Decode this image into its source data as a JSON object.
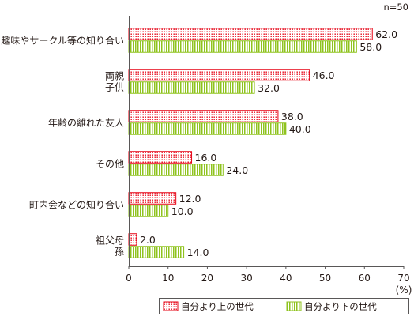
{
  "chart_data": {
    "type": "bar",
    "orientation": "horizontal",
    "note": "n=50",
    "categories": [
      [
        "趣味やサークル等の知り合い"
      ],
      [
        "両親",
        "子供"
      ],
      [
        "年齢の離れた友人"
      ],
      [
        "その他"
      ],
      [
        "町内会などの知り合い"
      ],
      [
        "祖父母",
        "孫"
      ]
    ],
    "series": [
      {
        "name": "自分より上の世代",
        "values": [
          62.0,
          46.0,
          38.0,
          16.0,
          12.0,
          2.0
        ],
        "color": "#e60012",
        "pattern": "dots"
      },
      {
        "name": "自分より下の世代",
        "values": [
          58.0,
          32.0,
          40.0,
          24.0,
          10.0,
          14.0
        ],
        "color": "#8fc31f",
        "pattern": "vertical-lines"
      }
    ],
    "xlim": [
      0,
      70
    ],
    "xticks": [
      0,
      10,
      20,
      30,
      40,
      50,
      60,
      70
    ],
    "xlabel": "(%)",
    "legend_position": "bottom-right",
    "grid": false
  }
}
